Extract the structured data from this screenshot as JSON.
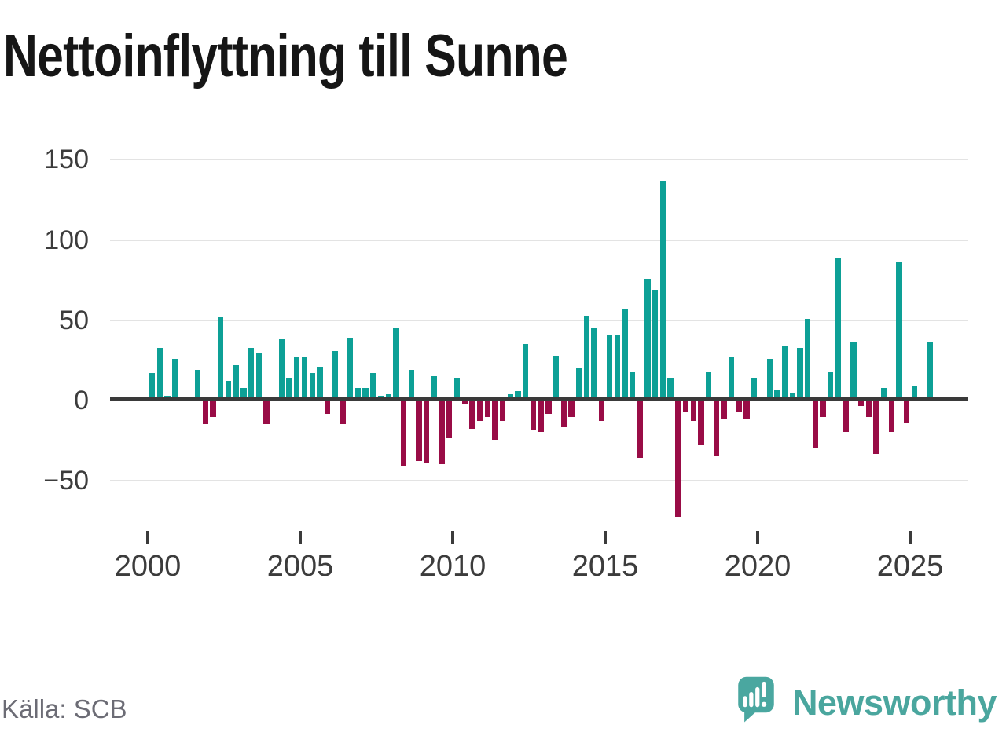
{
  "chart_data": {
    "type": "bar",
    "title": "Nettoinflyttning till Sunne",
    "source": "Källa: SCB",
    "frequency": "quarterly",
    "grid": true,
    "legend": "none",
    "ylim": [
      -75,
      160
    ],
    "positive_color": "#0da096",
    "negative_color": "#990c46",
    "y_ticks": [
      {
        "value": 150,
        "label": "150"
      },
      {
        "value": 100,
        "label": "100"
      },
      {
        "value": 50,
        "label": "50"
      },
      {
        "value": 0,
        "label": "0"
      },
      {
        "value": -50,
        "label": "−50"
      }
    ],
    "x_ticks": [
      {
        "year": 2000,
        "label": "2000"
      },
      {
        "year": 2005,
        "label": "2005"
      },
      {
        "year": 2010,
        "label": "2010"
      },
      {
        "year": 2015,
        "label": "2015"
      },
      {
        "year": 2020,
        "label": "2020"
      },
      {
        "year": 2025,
        "label": "2025"
      }
    ],
    "series": [
      {
        "year": 2000,
        "q1": 17,
        "q2": 33,
        "q3": 3,
        "q4": 26
      },
      {
        "year": 2001,
        "q1": 0,
        "q2": 0,
        "q3": 19,
        "q4": -14
      },
      {
        "year": 2002,
        "q1": -10,
        "q2": 52,
        "q3": 12,
        "q4": 22
      },
      {
        "year": 2003,
        "q1": 8,
        "q2": 33,
        "q3": 30,
        "q4": -14
      },
      {
        "year": 2004,
        "q1": 0,
        "q2": 38,
        "q3": 14,
        "q4": 27
      },
      {
        "year": 2005,
        "q1": 27,
        "q2": 17,
        "q3": 21,
        "q4": -8
      },
      {
        "year": 2006,
        "q1": 31,
        "q2": -14,
        "q3": 39,
        "q4": 8
      },
      {
        "year": 2007,
        "q1": 8,
        "q2": 17,
        "q3": 3,
        "q4": 4
      },
      {
        "year": 2008,
        "q1": 45,
        "q2": -40,
        "q3": 19,
        "q4": -37
      },
      {
        "year": 2009,
        "q1": -38,
        "q2": 15,
        "q3": -39,
        "q4": -23
      },
      {
        "year": 2010,
        "q1": 14,
        "q2": -2,
        "q3": -17,
        "q4": -12
      },
      {
        "year": 2011,
        "q1": -10,
        "q2": -24,
        "q3": -12,
        "q4": 4
      },
      {
        "year": 2012,
        "q1": 6,
        "q2": 35,
        "q3": -18,
        "q4": -19
      },
      {
        "year": 2013,
        "q1": -8,
        "q2": 28,
        "q3": -16,
        "q4": -10
      },
      {
        "year": 2014,
        "q1": 20,
        "q2": 53,
        "q3": 45,
        "q4": -12
      },
      {
        "year": 2015,
        "q1": 41,
        "q2": 41,
        "q3": 57,
        "q4": 18
      },
      {
        "year": 2016,
        "q1": -35,
        "q2": 76,
        "q3": 69,
        "q4": 137
      },
      {
        "year": 2017,
        "q1": 14,
        "q2": -72,
        "q3": -7,
        "q4": -12
      },
      {
        "year": 2018,
        "q1": -27,
        "q2": 18,
        "q3": -34,
        "q4": -11
      },
      {
        "year": 2019,
        "q1": 27,
        "q2": -7,
        "q3": -11,
        "q4": 14
      },
      {
        "year": 2020,
        "q1": 0,
        "q2": 26,
        "q3": 7,
        "q4": 34
      },
      {
        "year": 2021,
        "q1": 5,
        "q2": 33,
        "q3": 51,
        "q4": -29
      },
      {
        "year": 2022,
        "q1": -10,
        "q2": 18,
        "q3": 89,
        "q4": -19
      },
      {
        "year": 2023,
        "q1": 36,
        "q2": -3,
        "q3": -10,
        "q4": -33
      },
      {
        "year": 2024,
        "q1": 8,
        "q2": -19,
        "q3": 86,
        "q4": -13
      },
      {
        "year": 2025,
        "q1": 9,
        "q2": 0,
        "q3": 36
      }
    ]
  },
  "branding": {
    "wordmark": "Newsworthy",
    "logo_color": "#4aa69e"
  }
}
